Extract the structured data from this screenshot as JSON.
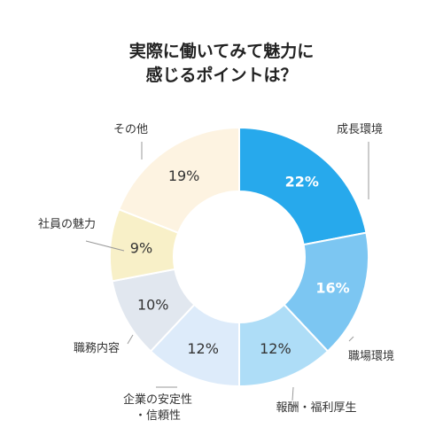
{
  "chart_data": {
    "type": "pie",
    "title": [
      "実際に働いてみて魅力に",
      "感じるポイントは？"
    ],
    "slices": [
      {
        "label": [
          "成長環境"
        ],
        "value": 22,
        "display": "22%",
        "color": "#27A9EC",
        "text_color": "#ffffff"
      },
      {
        "label": [
          "職場環境"
        ],
        "value": 16,
        "display": "16%",
        "color": "#7CC6F2",
        "text_color": "#ffffff"
      },
      {
        "label": [
          "報酬・福利厚生"
        ],
        "value": 12,
        "display": "12%",
        "color": "#AEDDF7",
        "text_color": "#333333"
      },
      {
        "label": [
          "企業の安定性",
          "・信頼性"
        ],
        "value": 12,
        "display": "12%",
        "color": "#DDEBFA",
        "text_color": "#333333"
      },
      {
        "label": [
          "職務内容"
        ],
        "value": 10,
        "display": "10%",
        "color": "#E1E7EF",
        "text_color": "#333333"
      },
      {
        "label": [
          "社員の魅力"
        ],
        "value": 9,
        "display": "9%",
        "color": "#F8F0C8",
        "text_color": "#333333"
      },
      {
        "label": [
          "その他"
        ],
        "value": 19,
        "display": "19%",
        "color": "#FDF3E1",
        "text_color": "#333333"
      }
    ],
    "legend": "none",
    "start": "top",
    "direction": "clockwise"
  }
}
